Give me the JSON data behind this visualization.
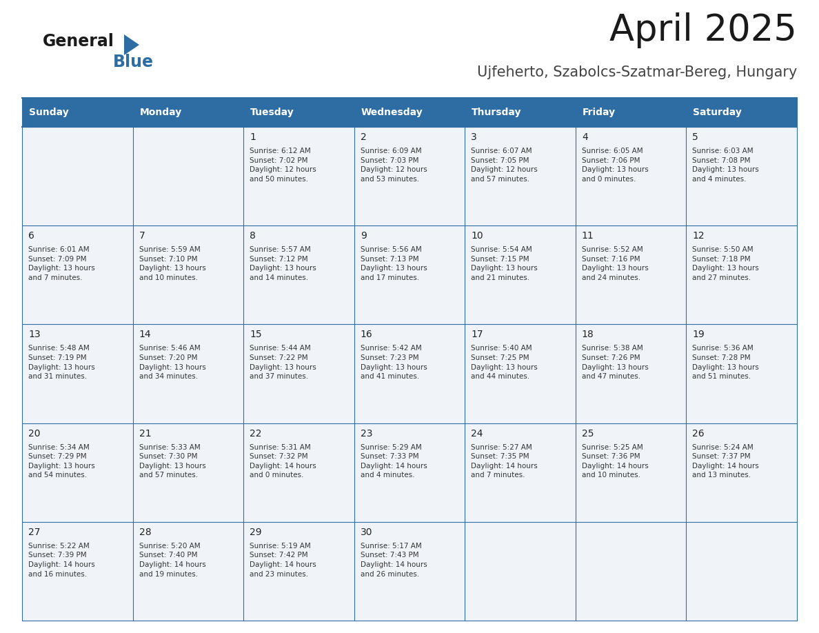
{
  "title": "April 2025",
  "subtitle": "Ujfeherto, Szabolcs-Szatmar-Bereg, Hungary",
  "header_bg": "#2E6DA4",
  "header_text": "#FFFFFF",
  "cell_bg": "#F0F4F8",
  "border_color": "#2E6DA4",
  "text_color": "#333333",
  "days_of_week": [
    "Sunday",
    "Monday",
    "Tuesday",
    "Wednesday",
    "Thursday",
    "Friday",
    "Saturday"
  ],
  "weeks": [
    [
      {
        "day": "",
        "info": ""
      },
      {
        "day": "",
        "info": ""
      },
      {
        "day": "1",
        "info": "Sunrise: 6:12 AM\nSunset: 7:02 PM\nDaylight: 12 hours\nand 50 minutes."
      },
      {
        "day": "2",
        "info": "Sunrise: 6:09 AM\nSunset: 7:03 PM\nDaylight: 12 hours\nand 53 minutes."
      },
      {
        "day": "3",
        "info": "Sunrise: 6:07 AM\nSunset: 7:05 PM\nDaylight: 12 hours\nand 57 minutes."
      },
      {
        "day": "4",
        "info": "Sunrise: 6:05 AM\nSunset: 7:06 PM\nDaylight: 13 hours\nand 0 minutes."
      },
      {
        "day": "5",
        "info": "Sunrise: 6:03 AM\nSunset: 7:08 PM\nDaylight: 13 hours\nand 4 minutes."
      }
    ],
    [
      {
        "day": "6",
        "info": "Sunrise: 6:01 AM\nSunset: 7:09 PM\nDaylight: 13 hours\nand 7 minutes."
      },
      {
        "day": "7",
        "info": "Sunrise: 5:59 AM\nSunset: 7:10 PM\nDaylight: 13 hours\nand 10 minutes."
      },
      {
        "day": "8",
        "info": "Sunrise: 5:57 AM\nSunset: 7:12 PM\nDaylight: 13 hours\nand 14 minutes."
      },
      {
        "day": "9",
        "info": "Sunrise: 5:56 AM\nSunset: 7:13 PM\nDaylight: 13 hours\nand 17 minutes."
      },
      {
        "day": "10",
        "info": "Sunrise: 5:54 AM\nSunset: 7:15 PM\nDaylight: 13 hours\nand 21 minutes."
      },
      {
        "day": "11",
        "info": "Sunrise: 5:52 AM\nSunset: 7:16 PM\nDaylight: 13 hours\nand 24 minutes."
      },
      {
        "day": "12",
        "info": "Sunrise: 5:50 AM\nSunset: 7:18 PM\nDaylight: 13 hours\nand 27 minutes."
      }
    ],
    [
      {
        "day": "13",
        "info": "Sunrise: 5:48 AM\nSunset: 7:19 PM\nDaylight: 13 hours\nand 31 minutes."
      },
      {
        "day": "14",
        "info": "Sunrise: 5:46 AM\nSunset: 7:20 PM\nDaylight: 13 hours\nand 34 minutes."
      },
      {
        "day": "15",
        "info": "Sunrise: 5:44 AM\nSunset: 7:22 PM\nDaylight: 13 hours\nand 37 minutes."
      },
      {
        "day": "16",
        "info": "Sunrise: 5:42 AM\nSunset: 7:23 PM\nDaylight: 13 hours\nand 41 minutes."
      },
      {
        "day": "17",
        "info": "Sunrise: 5:40 AM\nSunset: 7:25 PM\nDaylight: 13 hours\nand 44 minutes."
      },
      {
        "day": "18",
        "info": "Sunrise: 5:38 AM\nSunset: 7:26 PM\nDaylight: 13 hours\nand 47 minutes."
      },
      {
        "day": "19",
        "info": "Sunrise: 5:36 AM\nSunset: 7:28 PM\nDaylight: 13 hours\nand 51 minutes."
      }
    ],
    [
      {
        "day": "20",
        "info": "Sunrise: 5:34 AM\nSunset: 7:29 PM\nDaylight: 13 hours\nand 54 minutes."
      },
      {
        "day": "21",
        "info": "Sunrise: 5:33 AM\nSunset: 7:30 PM\nDaylight: 13 hours\nand 57 minutes."
      },
      {
        "day": "22",
        "info": "Sunrise: 5:31 AM\nSunset: 7:32 PM\nDaylight: 14 hours\nand 0 minutes."
      },
      {
        "day": "23",
        "info": "Sunrise: 5:29 AM\nSunset: 7:33 PM\nDaylight: 14 hours\nand 4 minutes."
      },
      {
        "day": "24",
        "info": "Sunrise: 5:27 AM\nSunset: 7:35 PM\nDaylight: 14 hours\nand 7 minutes."
      },
      {
        "day": "25",
        "info": "Sunrise: 5:25 AM\nSunset: 7:36 PM\nDaylight: 14 hours\nand 10 minutes."
      },
      {
        "day": "26",
        "info": "Sunrise: 5:24 AM\nSunset: 7:37 PM\nDaylight: 14 hours\nand 13 minutes."
      }
    ],
    [
      {
        "day": "27",
        "info": "Sunrise: 5:22 AM\nSunset: 7:39 PM\nDaylight: 14 hours\nand 16 minutes."
      },
      {
        "day": "28",
        "info": "Sunrise: 5:20 AM\nSunset: 7:40 PM\nDaylight: 14 hours\nand 19 minutes."
      },
      {
        "day": "29",
        "info": "Sunrise: 5:19 AM\nSunset: 7:42 PM\nDaylight: 14 hours\nand 23 minutes."
      },
      {
        "day": "30",
        "info": "Sunrise: 5:17 AM\nSunset: 7:43 PM\nDaylight: 14 hours\nand 26 minutes."
      },
      {
        "day": "",
        "info": ""
      },
      {
        "day": "",
        "info": ""
      },
      {
        "day": "",
        "info": ""
      }
    ]
  ],
  "logo_general_color": "#1a1a1a",
  "logo_blue_color": "#2E6DA4",
  "logo_triangle_color": "#2E6DA4"
}
